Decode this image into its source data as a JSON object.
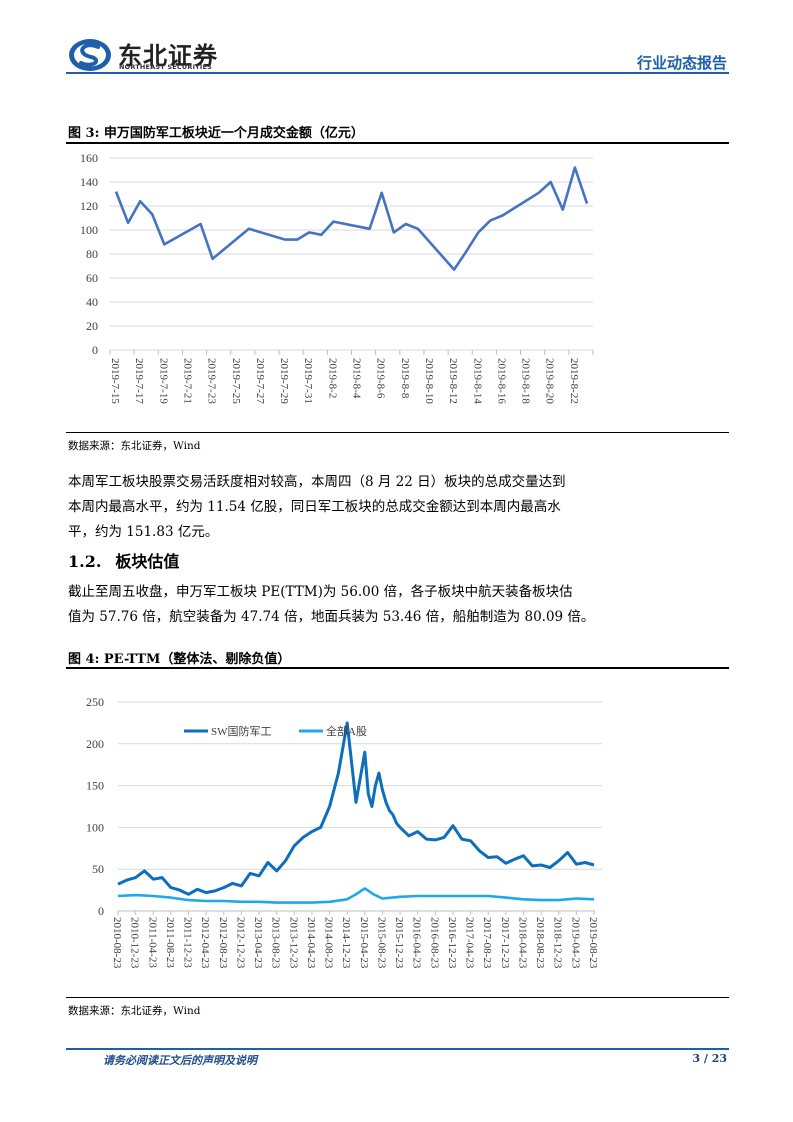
{
  "header": {
    "logo_cn": "东北证券",
    "logo_en": "NORTHEAST SECURITIES",
    "report_type": "行业动态报告",
    "brand_color": "#1f5ea8"
  },
  "figure3": {
    "title": "图 3:  申万国防军工板块近一个月成交金额（亿元）",
    "source": "数据来源：东北证券，Wind"
  },
  "paragraph1": {
    "lines": [
      "本周军工板块股票交易活跃度相对较高，本周四（8 月 22 日）板块的总成交量达到",
      "本周内最高水平，约为 11.54 亿股，同日军工板块的总成交金额达到本周内最高水",
      "平，约为 151.83 亿元。"
    ]
  },
  "section": {
    "number": "1.2.",
    "title": "板块估值"
  },
  "paragraph2": {
    "lines": [
      "截止至周五收盘，申万军工板块 PE(TTM)为 56.00 倍，各子板块中航天装备板块估",
      "值为 57.76 倍，航空装备为 47.74 倍，地面兵装为 53.46 倍，船舶制造为 80.09 倍。"
    ]
  },
  "figure4": {
    "title": "图 4:   PE-TTM（整体法、剔除负值）",
    "source": "数据来源：东北证券，Wind"
  },
  "footer": {
    "note": "请务必阅读正文后的声明及说明",
    "page": "3 / 23"
  },
  "chart_data": [
    {
      "type": "line",
      "title": "申万国防军工板块近一个月成交金额（亿元）",
      "xlabel": "",
      "ylabel": "亿元",
      "ylim": [
        0,
        160
      ],
      "yticks": [
        0,
        20,
        40,
        60,
        80,
        100,
        120,
        140,
        160
      ],
      "xtick_labels": [
        "2019-7-15",
        "2019-7-17",
        "2019-7-19",
        "2019-7-21",
        "2019-7-23",
        "2019-7-25",
        "2019-7-27",
        "2019-7-29",
        "2019-7-31",
        "2019-8-2",
        "2019-8-4",
        "2019-8-6",
        "2019-8-8",
        "2019-8-10",
        "2019-8-12",
        "2019-8-14",
        "2019-8-16",
        "2019-8-18",
        "2019-8-20",
        "2019-8-22"
      ],
      "x_start": "2019-7-15",
      "x_days_total": 40,
      "grid": true,
      "legend": false,
      "color": "#4472c4",
      "series": [
        {
          "name": "成交金额",
          "points": [
            {
              "x": "2019-7-15",
              "d": 0,
              "y": 132
            },
            {
              "x": "2019-7-16",
              "d": 1,
              "y": 106
            },
            {
              "x": "2019-7-17",
              "d": 2,
              "y": 124
            },
            {
              "x": "2019-7-18",
              "d": 3,
              "y": 113
            },
            {
              "x": "2019-7-19",
              "d": 4,
              "y": 88
            },
            {
              "x": "2019-7-22",
              "d": 7,
              "y": 105
            },
            {
              "x": "2019-7-23",
              "d": 8,
              "y": 76
            },
            {
              "x": "2019-7-26",
              "d": 11,
              "y": 101
            },
            {
              "x": "2019-7-29",
              "d": 14,
              "y": 92
            },
            {
              "x": "2019-7-30",
              "d": 15,
              "y": 92
            },
            {
              "x": "2019-7-31",
              "d": 16,
              "y": 98
            },
            {
              "x": "2019-8-1",
              "d": 17,
              "y": 96
            },
            {
              "x": "2019-8-2",
              "d": 18,
              "y": 107
            },
            {
              "x": "2019-8-5",
              "d": 21,
              "y": 101
            },
            {
              "x": "2019-8-6",
              "d": 22,
              "y": 131
            },
            {
              "x": "2019-8-7",
              "d": 23,
              "y": 98
            },
            {
              "x": "2019-8-8",
              "d": 24,
              "y": 105
            },
            {
              "x": "2019-8-9",
              "d": 25,
              "y": 101
            },
            {
              "x": "2019-8-12",
              "d": 28,
              "y": 67
            },
            {
              "x": "2019-8-13",
              "d": 29,
              "y": 82
            },
            {
              "x": "2019-8-14",
              "d": 30,
              "y": 98
            },
            {
              "x": "2019-8-15",
              "d": 31,
              "y": 108
            },
            {
              "x": "2019-8-16",
              "d": 32,
              "y": 112
            },
            {
              "x": "2019-8-19",
              "d": 35,
              "y": 131
            },
            {
              "x": "2019-8-20",
              "d": 36,
              "y": 140
            },
            {
              "x": "2019-8-21",
              "d": 37,
              "y": 117
            },
            {
              "x": "2019-8-22",
              "d": 38,
              "y": 152
            },
            {
              "x": "2019-8-23",
              "d": 39,
              "y": 122
            }
          ]
        }
      ]
    },
    {
      "type": "line",
      "title": "PE-TTM（整体法、剔除负值）",
      "xlabel": "",
      "ylabel": "",
      "ylim": [
        0,
        250
      ],
      "yticks": [
        0,
        50,
        100,
        150,
        200,
        250
      ],
      "xtick_labels": [
        "2010-08-23",
        "2010-12-23",
        "2011-04-23",
        "2011-08-23",
        "2011-12-23",
        "2012-04-23",
        "2012-08-23",
        "2012-12-23",
        "2013-04-23",
        "2013-08-23",
        "2013-12-23",
        "2014-04-23",
        "2014-08-23",
        "2014-12-23",
        "2015-04-23",
        "2015-08-23",
        "2015-12-23",
        "2016-04-23",
        "2016-08-23",
        "2016-12-23",
        "2017-04-23",
        "2017-08-23",
        "2017-12-23",
        "2018-04-23",
        "2018-08-23",
        "2018-12-23",
        "2019-04-23",
        "2019-08-23"
      ],
      "grid": true,
      "legend_position": "top-center inside",
      "series": [
        {
          "name": "SW国防军工",
          "color": "#0d6ebd",
          "x_index": [
            0,
            0.5,
            1,
            1.5,
            2,
            2.5,
            3,
            3.5,
            4,
            4.5,
            5,
            5.5,
            6,
            6.5,
            7,
            7.5,
            8,
            8.5,
            9,
            9.5,
            10,
            10.5,
            11,
            11.5,
            12,
            12.5,
            13,
            13.5,
            14,
            14.2,
            14.4,
            14.6,
            14.8,
            15,
            15.2,
            15.4,
            15.6,
            15.8,
            16,
            16.5,
            17,
            17.5,
            18,
            18.5,
            19,
            19.5,
            20,
            20.5,
            21,
            21.5,
            22,
            22.5,
            23,
            23.5,
            24,
            24.5,
            25,
            25.5,
            26,
            26.5,
            27
          ],
          "values": [
            32,
            37,
            40,
            48,
            38,
            40,
            28,
            25,
            20,
            26,
            22,
            24,
            28,
            33,
            30,
            45,
            42,
            58,
            48,
            60,
            78,
            88,
            95,
            100,
            125,
            165,
            225,
            130,
            190,
            140,
            125,
            150,
            165,
            145,
            130,
            120,
            115,
            105,
            100,
            90,
            95,
            86,
            85,
            88,
            102,
            86,
            84,
            72,
            64,
            65,
            57,
            62,
            66,
            54,
            55,
            52,
            60,
            70,
            56,
            58,
            55
          ]
        },
        {
          "name": "全部A股",
          "color": "#1fa8e8",
          "x_index": [
            0,
            1,
            2,
            3,
            4,
            5,
            6,
            7,
            8,
            9,
            10,
            11,
            12,
            13,
            13.5,
            14,
            14.5,
            15,
            16,
            17,
            18,
            19,
            20,
            21,
            22,
            23,
            24,
            25,
            26,
            27
          ],
          "values": [
            18,
            19,
            18,
            16,
            13,
            12,
            12,
            11,
            11,
            10,
            10,
            10,
            11,
            14,
            20,
            27,
            20,
            15,
            17,
            18,
            18,
            18,
            18,
            18,
            16,
            14,
            13,
            13,
            15,
            14
          ]
        }
      ]
    }
  ]
}
